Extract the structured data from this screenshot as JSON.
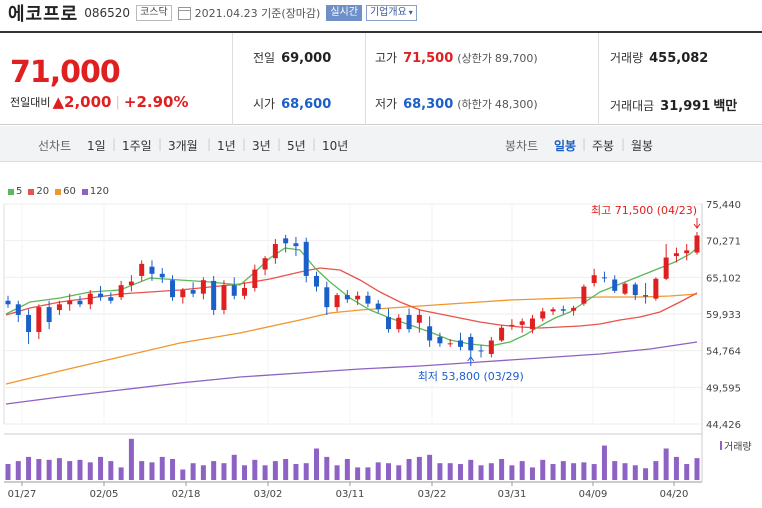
{
  "header": {
    "name": "에코프로",
    "code": "086520",
    "market": "코스닥",
    "date": "2021.04.23",
    "basis": "기준(장마감)",
    "realtime": "실시간",
    "company_info": "기업개요"
  },
  "quote": {
    "price": "71,000",
    "change_label": "전일대비",
    "change": "2,000",
    "change_pct": "+2.90%",
    "prev_label": "전일",
    "prev": "69,000",
    "high_label": "고가",
    "high": "71,500",
    "upper_label": "(상한가",
    "upper": "89,700)",
    "volume_label": "거래량",
    "volume": "455,082",
    "open_label": "시가",
    "open": "68,600",
    "low_label": "저가",
    "low": "68,300",
    "lower_label": "(하한가",
    "lower": "48,300)",
    "amount_label": "거래대금",
    "amount": "31,991",
    "amount_unit": "백만"
  },
  "period": {
    "line_label": "선차트",
    "line_tabs": [
      "1일",
      "1주일",
      "3개월",
      "1년",
      "3년",
      "5년",
      "10년"
    ],
    "candle_label": "봉차트",
    "candle_tabs": [
      "일봉",
      "주봉",
      "월봉"
    ],
    "candle_active": "일봉"
  },
  "colors": {
    "up": "#e02020",
    "down": "#1b5fc9",
    "ma5": "#5cb85c",
    "ma20": "#e8534a",
    "ma60": "#f0962e",
    "ma120": "#8e62c4",
    "volume": "#8e62c4"
  },
  "chart_data": {
    "type": "candlestick",
    "legend": [
      "5",
      "20",
      "60",
      "120"
    ],
    "y_ticks": [
      "75,440",
      "70,271",
      "65,102",
      "59,933",
      "54,764",
      "49,595",
      "44,426"
    ],
    "ylim": [
      44426,
      75440
    ],
    "x_labels": [
      "01/27",
      "02/05",
      "02/18",
      "03/02",
      "03/11",
      "03/22",
      "03/31",
      "04/09",
      "04/20"
    ],
    "max_note": "최고 71,500 (04/23)",
    "min_note": "최저 53,800 (03/29)",
    "volume_label": "거래량",
    "candles": [
      [
        61800,
        62500,
        60800,
        61300
      ],
      [
        61300,
        61800,
        58800,
        59800
      ],
      [
        59800,
        60600,
        55700,
        57400
      ],
      [
        57400,
        61300,
        56400,
        60900
      ],
      [
        60900,
        61800,
        57800,
        58800
      ],
      [
        60500,
        61800,
        59800,
        61300
      ],
      [
        61300,
        62800,
        60400,
        61800
      ],
      [
        61800,
        62500,
        60900,
        61300
      ],
      [
        61300,
        63300,
        60600,
        62800
      ],
      [
        62800,
        63900,
        61800,
        62300
      ],
      [
        62300,
        63000,
        61400,
        61800
      ],
      [
        62300,
        64600,
        61900,
        64000
      ],
      [
        64000,
        65400,
        63100,
        64500
      ],
      [
        65300,
        67500,
        64600,
        67000
      ],
      [
        66600,
        67500,
        64600,
        65600
      ],
      [
        65600,
        66400,
        64300,
        65100
      ],
      [
        64700,
        65400,
        61800,
        62300
      ],
      [
        62300,
        63600,
        61400,
        63300
      ],
      [
        63300,
        64400,
        62300,
        62800
      ],
      [
        62800,
        65100,
        62000,
        64700
      ],
      [
        64600,
        65300,
        59800,
        60500
      ],
      [
        60500,
        64700,
        59900,
        64000
      ],
      [
        64000,
        65100,
        62000,
        62500
      ],
      [
        62500,
        64400,
        62000,
        63600
      ],
      [
        63600,
        66900,
        63100,
        66200
      ],
      [
        66200,
        68100,
        65400,
        67800
      ],
      [
        67800,
        70500,
        67000,
        69800
      ],
      [
        70600,
        71100,
        68600,
        69900
      ],
      [
        69900,
        70800,
        68100,
        69500
      ],
      [
        70100,
        70700,
        64400,
        65300
      ],
      [
        65300,
        65900,
        63100,
        63800
      ],
      [
        63700,
        64500,
        59800,
        60900
      ],
      [
        60900,
        62900,
        60300,
        62600
      ],
      [
        62600,
        63300,
        61500,
        62000
      ],
      [
        62000,
        63100,
        61200,
        62500
      ],
      [
        62500,
        63100,
        60900,
        61400
      ],
      [
        61400,
        61900,
        60100,
        60600
      ],
      [
        59500,
        60700,
        57300,
        57800
      ],
      [
        57800,
        59900,
        57300,
        59400
      ],
      [
        59800,
        60700,
        57300,
        57800
      ],
      [
        58700,
        60500,
        57300,
        59800
      ],
      [
        58200,
        59600,
        55300,
        56200
      ],
      [
        56700,
        57300,
        55300,
        55800
      ],
      [
        55800,
        56400,
        55300,
        55800
      ],
      [
        56200,
        57300,
        54800,
        55300
      ],
      [
        56700,
        57200,
        53800,
        54800
      ],
      [
        54800,
        55600,
        53800,
        54700
      ],
      [
        54300,
        56700,
        53800,
        56200
      ],
      [
        56200,
        58400,
        56000,
        58000
      ],
      [
        58300,
        59200,
        57700,
        58400
      ],
      [
        58400,
        59300,
        57300,
        58900
      ],
      [
        57800,
        59800,
        57200,
        59300
      ],
      [
        59300,
        60800,
        58900,
        60300
      ],
      [
        60300,
        60900,
        59800,
        60600
      ],
      [
        60600,
        61100,
        59900,
        60400
      ],
      [
        60400,
        61100,
        59700,
        60800
      ],
      [
        61400,
        64100,
        61100,
        63800
      ],
      [
        64300,
        66300,
        63800,
        65400
      ],
      [
        65100,
        65900,
        64400,
        65000
      ],
      [
        64800,
        65400,
        62900,
        63200
      ],
      [
        62800,
        64400,
        62600,
        64200
      ],
      [
        64100,
        64400,
        61900,
        62600
      ],
      [
        62600,
        64300,
        61400,
        62400
      ],
      [
        62100,
        65100,
        61800,
        64900
      ],
      [
        64900,
        69800,
        64700,
        67900
      ],
      [
        68100,
        69300,
        67200,
        68500
      ],
      [
        68500,
        69800,
        67500,
        68900
      ],
      [
        68600,
        71500,
        68300,
        71000
      ]
    ],
    "volume": [
      0.38,
      0.45,
      0.55,
      0.5,
      0.48,
      0.52,
      0.45,
      0.48,
      0.42,
      0.55,
      0.45,
      0.3,
      0.98,
      0.45,
      0.42,
      0.55,
      0.5,
      0.25,
      0.4,
      0.35,
      0.45,
      0.4,
      0.6,
      0.35,
      0.48,
      0.35,
      0.45,
      0.5,
      0.38,
      0.4,
      0.75,
      0.55,
      0.35,
      0.5,
      0.3,
      0.3,
      0.42,
      0.4,
      0.35,
      0.5,
      0.55,
      0.6,
      0.4,
      0.4,
      0.38,
      0.48,
      0.35,
      0.4,
      0.5,
      0.35,
      0.45,
      0.3,
      0.48,
      0.38,
      0.45,
      0.4,
      0.42,
      0.38,
      0.82,
      0.45,
      0.4,
      0.35,
      0.28,
      0.45,
      0.75,
      0.55,
      0.38,
      0.52
    ],
    "ma5": [
      [
        6,
        314
      ],
      [
        30,
        302
      ],
      [
        60,
        298
      ],
      [
        90,
        292
      ],
      [
        120,
        290
      ],
      [
        150,
        278
      ],
      [
        180,
        280
      ],
      [
        210,
        282
      ],
      [
        240,
        285
      ],
      [
        255,
        272
      ],
      [
        270,
        258
      ],
      [
        285,
        248
      ],
      [
        300,
        250
      ],
      [
        315,
        268
      ],
      [
        330,
        282
      ],
      [
        350,
        298
      ],
      [
        370,
        310
      ],
      [
        390,
        318
      ],
      [
        410,
        325
      ],
      [
        430,
        332
      ],
      [
        450,
        340
      ],
      [
        470,
        344
      ],
      [
        490,
        346
      ],
      [
        510,
        342
      ],
      [
        525,
        335
      ],
      [
        540,
        326
      ],
      [
        555,
        318
      ],
      [
        570,
        312
      ],
      [
        585,
        302
      ],
      [
        600,
        292
      ],
      [
        615,
        286
      ],
      [
        630,
        280
      ],
      [
        645,
        274
      ],
      [
        660,
        268
      ],
      [
        675,
        262
      ],
      [
        690,
        254
      ],
      [
        697,
        248
      ]
    ],
    "ma20": [
      [
        6,
        315
      ],
      [
        30,
        308
      ],
      [
        60,
        302
      ],
      [
        90,
        298
      ],
      [
        120,
        294
      ],
      [
        150,
        292
      ],
      [
        180,
        290
      ],
      [
        210,
        287
      ],
      [
        240,
        284
      ],
      [
        270,
        279
      ],
      [
        300,
        272
      ],
      [
        320,
        268
      ],
      [
        340,
        270
      ],
      [
        360,
        280
      ],
      [
        380,
        292
      ],
      [
        400,
        302
      ],
      [
        420,
        310
      ],
      [
        440,
        314
      ],
      [
        460,
        318
      ],
      [
        480,
        322
      ],
      [
        500,
        325
      ],
      [
        520,
        327
      ],
      [
        540,
        328
      ],
      [
        560,
        327
      ],
      [
        580,
        326
      ],
      [
        600,
        324
      ],
      [
        620,
        320
      ],
      [
        640,
        317
      ],
      [
        660,
        312
      ],
      [
        680,
        302
      ],
      [
        697,
        293
      ]
    ],
    "ma60": [
      [
        6,
        384
      ],
      [
        60,
        371
      ],
      [
        120,
        357
      ],
      [
        180,
        343
      ],
      [
        240,
        333
      ],
      [
        300,
        320
      ],
      [
        330,
        313
      ],
      [
        360,
        310
      ],
      [
        390,
        308
      ],
      [
        420,
        306
      ],
      [
        450,
        304
      ],
      [
        480,
        302
      ],
      [
        510,
        300
      ],
      [
        540,
        299
      ],
      [
        570,
        298
      ],
      [
        600,
        297
      ],
      [
        640,
        297
      ],
      [
        670,
        296
      ],
      [
        697,
        294
      ]
    ],
    "ma120": [
      [
        6,
        404
      ],
      [
        60,
        397
      ],
      [
        120,
        390
      ],
      [
        180,
        383
      ],
      [
        240,
        377
      ],
      [
        300,
        373
      ],
      [
        360,
        369
      ],
      [
        420,
        366
      ],
      [
        480,
        362
      ],
      [
        540,
        358
      ],
      [
        600,
        354
      ],
      [
        650,
        349
      ],
      [
        697,
        342
      ]
    ]
  }
}
